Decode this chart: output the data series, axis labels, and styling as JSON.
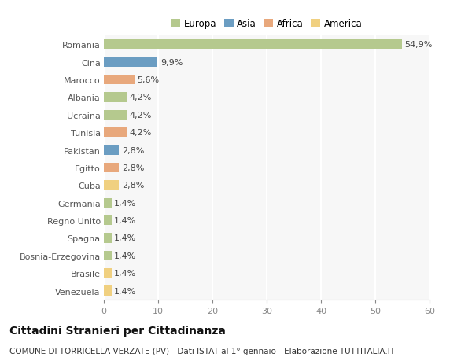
{
  "countries": [
    "Romania",
    "Cina",
    "Marocco",
    "Albania",
    "Ucraina",
    "Tunisia",
    "Pakistan",
    "Egitto",
    "Cuba",
    "Germania",
    "Regno Unito",
    "Spagna",
    "Bosnia-Erzegovina",
    "Brasile",
    "Venezuela"
  ],
  "values": [
    54.9,
    9.9,
    5.6,
    4.2,
    4.2,
    4.2,
    2.8,
    2.8,
    2.8,
    1.4,
    1.4,
    1.4,
    1.4,
    1.4,
    1.4
  ],
  "labels": [
    "54,9%",
    "9,9%",
    "5,6%",
    "4,2%",
    "4,2%",
    "4,2%",
    "2,8%",
    "2,8%",
    "2,8%",
    "1,4%",
    "1,4%",
    "1,4%",
    "1,4%",
    "1,4%",
    "1,4%"
  ],
  "colors": [
    "#b5c98e",
    "#6b9dc2",
    "#e8a87c",
    "#b5c98e",
    "#b5c98e",
    "#e8a87c",
    "#6b9dc2",
    "#e8a87c",
    "#f0d080",
    "#b5c98e",
    "#b5c98e",
    "#b5c98e",
    "#b5c98e",
    "#f0d080",
    "#f0d080"
  ],
  "legend_labels": [
    "Europa",
    "Asia",
    "Africa",
    "America"
  ],
  "legend_colors": [
    "#b5c98e",
    "#6b9dc2",
    "#e8a87c",
    "#f0d080"
  ],
  "title": "Cittadini Stranieri per Cittadinanza",
  "subtitle": "COMUNE DI TORRICELLA VERZATE (PV) - Dati ISTAT al 1° gennaio - Elaborazione TUTTITALIA.IT",
  "xlim": [
    0,
    60
  ],
  "xticks": [
    0,
    10,
    20,
    30,
    40,
    50,
    60
  ],
  "background_color": "#ffffff",
  "plot_bg_color": "#f7f7f7",
  "bar_height": 0.55,
  "title_fontsize": 10,
  "subtitle_fontsize": 7.5,
  "label_fontsize": 8,
  "tick_fontsize": 8,
  "legend_fontsize": 8.5,
  "grid_color": "#ffffff",
  "grid_linewidth": 1.5
}
